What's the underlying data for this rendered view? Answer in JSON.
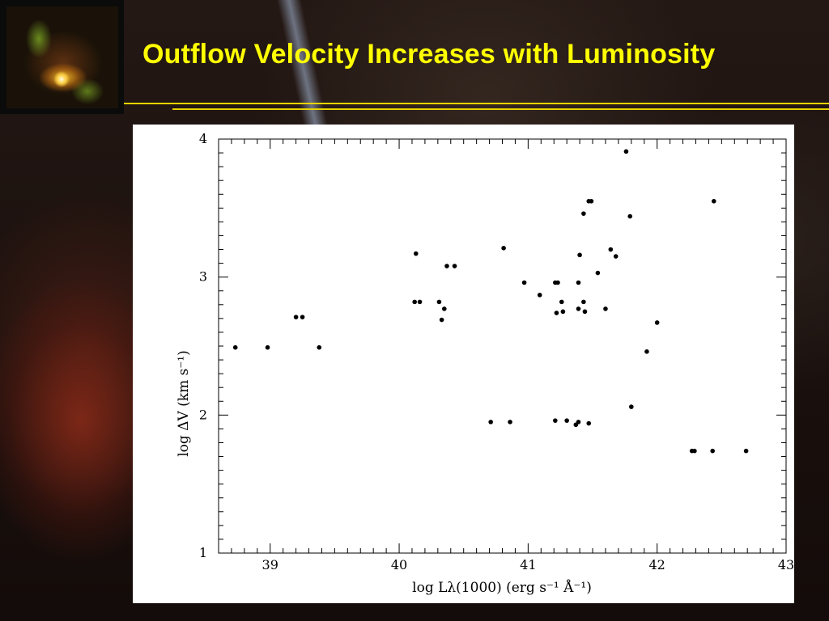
{
  "slide": {
    "title": "Outflow Velocity Increases with Luminosity"
  },
  "colors": {
    "title": "#ffff00",
    "rule": "#e8d400",
    "points": "#000000"
  },
  "chart_data": {
    "type": "scatter",
    "title": "",
    "xlabel": "log Lλ(1000) (erg s⁻¹ Å⁻¹)",
    "ylabel": "log ΔV (km s⁻¹)",
    "xlim": [
      38.6,
      43
    ],
    "ylim": [
      1,
      4
    ],
    "xticks": [
      39,
      40,
      41,
      42,
      43
    ],
    "yticks": [
      1,
      2,
      3,
      4
    ],
    "grid": false,
    "series": [
      {
        "points": [
          [
            38.73,
            2.49
          ],
          [
            38.98,
            2.49
          ],
          [
            39.2,
            2.71
          ],
          [
            39.25,
            2.71
          ],
          [
            39.38,
            2.49
          ],
          [
            40.12,
            2.82
          ],
          [
            40.13,
            3.17
          ],
          [
            40.16,
            2.82
          ],
          [
            40.31,
            2.82
          ],
          [
            40.33,
            2.69
          ],
          [
            40.35,
            2.77
          ],
          [
            40.37,
            3.08
          ],
          [
            40.43,
            3.08
          ],
          [
            40.71,
            1.95
          ],
          [
            40.81,
            3.21
          ],
          [
            40.86,
            1.95
          ],
          [
            40.97,
            2.96
          ],
          [
            41.09,
            2.87
          ],
          [
            41.21,
            2.96
          ],
          [
            41.21,
            1.96
          ],
          [
            41.22,
            2.74
          ],
          [
            41.23,
            2.96
          ],
          [
            41.26,
            2.82
          ],
          [
            41.27,
            2.75
          ],
          [
            41.3,
            1.96
          ],
          [
            41.37,
            1.93
          ],
          [
            41.39,
            1.95
          ],
          [
            41.39,
            2.77
          ],
          [
            41.39,
            2.96
          ],
          [
            41.4,
            3.16
          ],
          [
            41.43,
            3.46
          ],
          [
            41.43,
            2.82
          ],
          [
            41.44,
            2.75
          ],
          [
            41.47,
            1.94
          ],
          [
            41.47,
            3.55
          ],
          [
            41.49,
            3.55
          ],
          [
            41.54,
            3.03
          ],
          [
            41.6,
            2.77
          ],
          [
            41.64,
            3.2
          ],
          [
            41.68,
            3.15
          ],
          [
            41.76,
            3.91
          ],
          [
            41.79,
            3.44
          ],
          [
            41.8,
            2.06
          ],
          [
            41.92,
            2.46
          ],
          [
            42.0,
            2.67
          ],
          [
            42.27,
            1.74
          ],
          [
            42.29,
            1.74
          ],
          [
            42.43,
            1.74
          ],
          [
            42.44,
            3.55
          ],
          [
            42.69,
            1.74
          ]
        ]
      }
    ]
  }
}
